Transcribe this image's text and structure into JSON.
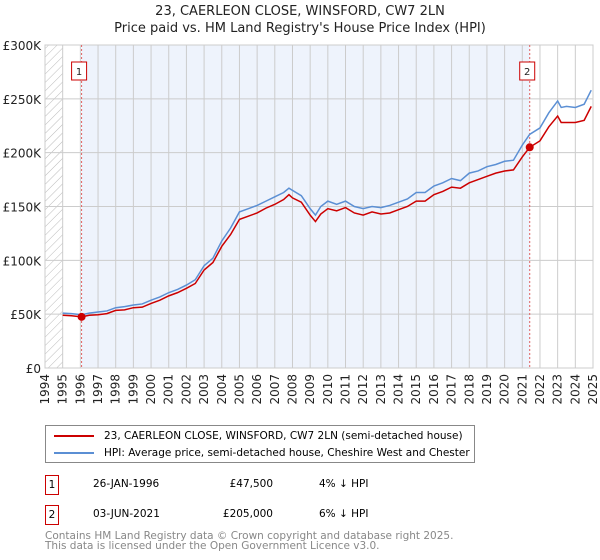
{
  "title": "23, CAERLEON CLOSE, WINSFORD, CW7 2LN",
  "subtitle": "Price paid vs. HM Land Registry's House Price Index (HPI)",
  "chart_data": {
    "type": "line",
    "ylim": [
      0,
      300000
    ],
    "xlim": [
      1994,
      2025
    ],
    "yticks": [
      {
        "v": 0,
        "label": "£0"
      },
      {
        "v": 50000,
        "label": "£50K"
      },
      {
        "v": 100000,
        "label": "£100K"
      },
      {
        "v": 150000,
        "label": "£150K"
      },
      {
        "v": 200000,
        "label": "£200K"
      },
      {
        "v": 250000,
        "label": "£250K"
      },
      {
        "v": 300000,
        "label": "£300K"
      }
    ],
    "xticks": [
      "1994",
      "1995",
      "1996",
      "1997",
      "1998",
      "1999",
      "2000",
      "2001",
      "2002",
      "2003",
      "2004",
      "2005",
      "2006",
      "2007",
      "2008",
      "2009",
      "2010",
      "2011",
      "2012",
      "2013",
      "2014",
      "2015",
      "2016",
      "2017",
      "2018",
      "2019",
      "2020",
      "2021",
      "2022",
      "2023",
      "2024",
      "2025"
    ],
    "grid": true,
    "series": [
      {
        "name": "23, CAERLEON CLOSE, WINSFORD, CW7 2LN (semi-detached house)",
        "color": "#cc0000",
        "x": [
          1995,
          1995.5,
          1996.07,
          1996.5,
          1997,
          1997.5,
          1998,
          1998.5,
          1999,
          1999.5,
          2000,
          2000.5,
          2001,
          2001.5,
          2002,
          2002.5,
          2003,
          2003.5,
          2004,
          2004.5,
          2005,
          2005.5,
          2006,
          2006.5,
          2007,
          2007.5,
          2007.8,
          2008,
          2008.5,
          2009,
          2009.3,
          2009.6,
          2010,
          2010.5,
          2011,
          2011.5,
          2012,
          2012.5,
          2013,
          2013.5,
          2014,
          2014.5,
          2015,
          2015.5,
          2016,
          2016.5,
          2017,
          2017.5,
          2018,
          2018.5,
          2019,
          2019.5,
          2020,
          2020.5,
          2021,
          2021.42,
          2022,
          2022.5,
          2023,
          2023.2,
          2023.5,
          2024,
          2024.5,
          2024.9
        ],
        "y": [
          49000,
          48500,
          47500,
          49000,
          49500,
          50500,
          53500,
          54000,
          56000,
          56500,
          60000,
          63000,
          67000,
          70000,
          74000,
          78500,
          91000,
          98000,
          113000,
          124000,
          138000,
          141000,
          144000,
          148500,
          152000,
          156500,
          161000,
          158000,
          154000,
          142000,
          136000,
          143000,
          148000,
          146000,
          149000,
          144000,
          142000,
          145000,
          143000,
          144000,
          147000,
          150000,
          155000,
          155000,
          161000,
          164000,
          168000,
          167000,
          172000,
          175000,
          178000,
          181000,
          183000,
          184000,
          196000,
          205000,
          211000,
          224000,
          234000,
          228000,
          228000,
          228000,
          230000,
          243000
        ]
      },
      {
        "name": "HPI: Average price, semi-detached house, Cheshire West and Chester",
        "color": "#5b8fd4",
        "x": [
          1995,
          1995.5,
          1996.07,
          1996.5,
          1997,
          1997.5,
          1998,
          1998.5,
          1999,
          1999.5,
          2000,
          2000.5,
          2001,
          2001.5,
          2002,
          2002.5,
          2003,
          2003.5,
          2004,
          2004.5,
          2005,
          2005.5,
          2006,
          2006.5,
          2007,
          2007.5,
          2007.8,
          2008,
          2008.5,
          2009,
          2009.3,
          2009.6,
          2010,
          2010.5,
          2011,
          2011.5,
          2012,
          2012.5,
          2013,
          2013.5,
          2014,
          2014.5,
          2015,
          2015.5,
          2016,
          2016.5,
          2017,
          2017.5,
          2018,
          2018.5,
          2019,
          2019.5,
          2020,
          2020.5,
          2021,
          2021.42,
          2022,
          2022.5,
          2023,
          2023.2,
          2023.5,
          2024,
          2024.5,
          2024.9
        ],
        "y": [
          51000,
          50500,
          49500,
          51000,
          52000,
          53000,
          56000,
          57000,
          58500,
          59500,
          63000,
          66000,
          70000,
          73000,
          77000,
          82000,
          95000,
          102000,
          118000,
          130000,
          145000,
          148000,
          151000,
          155000,
          159000,
          163000,
          167000,
          165000,
          160000,
          148000,
          142000,
          150000,
          155000,
          152000,
          155000,
          150000,
          148000,
          150000,
          149000,
          151000,
          154000,
          157000,
          163000,
          163000,
          169000,
          172000,
          176000,
          174000,
          181000,
          183000,
          187000,
          189000,
          192000,
          193000,
          207000,
          217000,
          223000,
          237000,
          248000,
          242000,
          243000,
          242000,
          245000,
          258000
        ]
      }
    ],
    "sales": [
      {
        "label": "1",
        "x": 1996.07,
        "y": 47500
      },
      {
        "label": "2",
        "x": 2021.42,
        "y": 205000
      }
    ]
  },
  "legend": [
    "23, CAERLEON CLOSE, WINSFORD, CW7 2LN (semi-detached house)",
    "HPI: Average price, semi-detached house, Cheshire West and Chester"
  ],
  "sales_table": [
    {
      "num": "1",
      "date": "26-JAN-1996",
      "price": "£47,500",
      "hpi": "4% ↓ HPI"
    },
    {
      "num": "2",
      "date": "03-JUN-2021",
      "price": "£205,000",
      "hpi": "6% ↓ HPI"
    }
  ],
  "footer": [
    "Contains HM Land Registry data © Crown copyright and database right 2025.",
    "This data is licensed under the Open Government Licence v3.0."
  ]
}
